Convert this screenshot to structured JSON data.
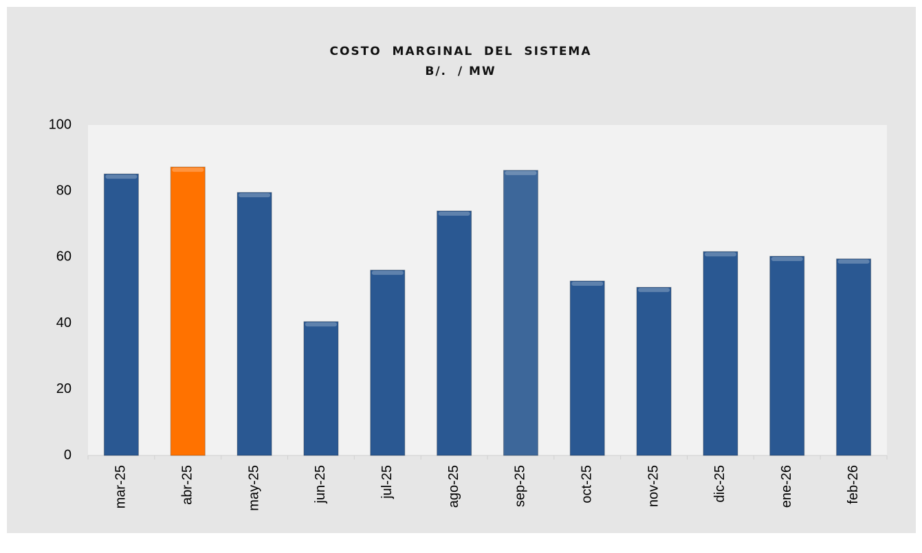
{
  "chart_data": {
    "type": "bar",
    "title": "COSTO  MARGINAL  DEL  SISTEMA",
    "subtitle": "B/.  / MW",
    "categories": [
      "mar-25",
      "abr-25",
      "may-25",
      "jun-25",
      "jul-25",
      "ago-25",
      "sep-25",
      "oct-25",
      "nov-25",
      "dic-25",
      "ene-26",
      "feb-26"
    ],
    "values": [
      85.2,
      87.3,
      79.6,
      40.5,
      56.1,
      74.0,
      86.3,
      52.8,
      50.9,
      61.7,
      60.3,
      59.5
    ],
    "colors": [
      "#2a5892",
      "#ff7200",
      "#2a5892",
      "#2a5892",
      "#2a5892",
      "#2a5892",
      "#3d679a",
      "#2a5892",
      "#2a5892",
      "#2a5892",
      "#2a5892",
      "#2a5892"
    ],
    "ylim": [
      0,
      100
    ],
    "yticks": [
      0,
      20,
      40,
      60,
      80,
      100
    ],
    "grid": false
  }
}
